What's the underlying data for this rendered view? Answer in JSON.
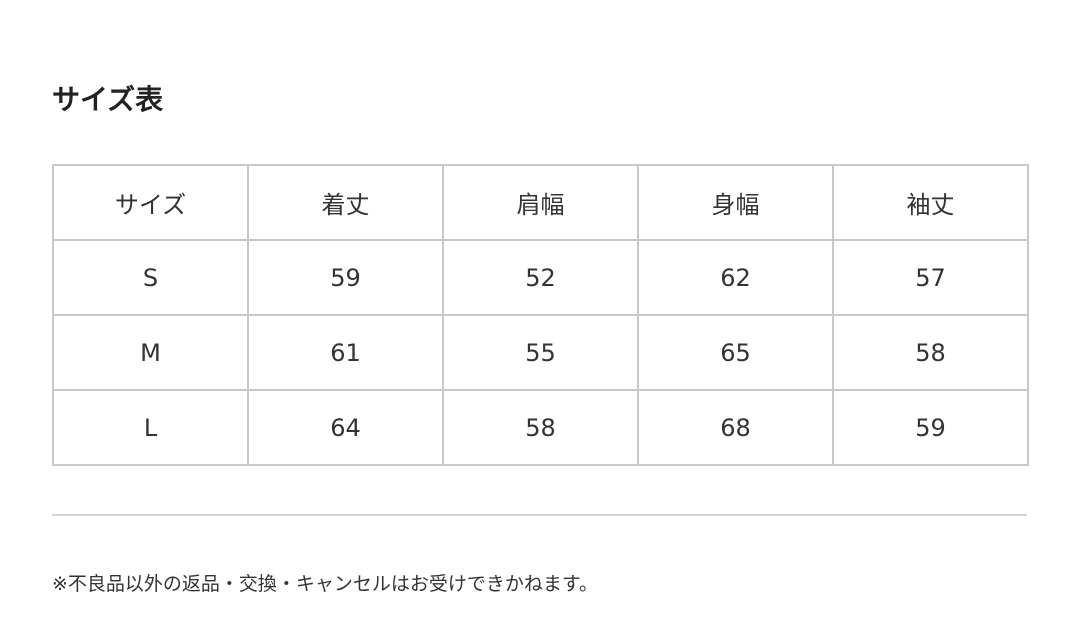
{
  "title": "サイズ表",
  "table": {
    "headers": [
      "サイズ",
      "着丈",
      "肩幅",
      "身幅",
      "袖丈"
    ],
    "rows": [
      [
        "S",
        "59",
        "52",
        "62",
        "57"
      ],
      [
        "M",
        "61",
        "55",
        "65",
        "58"
      ],
      [
        "L",
        "64",
        "58",
        "68",
        "59"
      ]
    ]
  },
  "note": "※不良品以外の返品・交換・キャンセルはお受けできかねます。"
}
